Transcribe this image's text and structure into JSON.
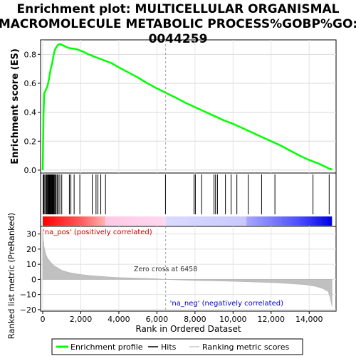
{
  "title_lines": [
    "Enrichment plot: MULTICELLULAR ORGANISMAL",
    "MACROMOLECULE METABOLIC PROCESS%GOBP%GO:",
    "0044259"
  ],
  "colors": {
    "enrichment_line": "#00ff00",
    "hits": "#000000",
    "ranking_fill": "#c0c0c0",
    "pos_band": "#ff0000",
    "neg_band": "#0000ff",
    "zero_line": "#a0a0a0"
  },
  "chart_data": [
    {
      "type": "line",
      "panel": "enrichment",
      "ylabel": "Enrichment score (ES)",
      "xlim": [
        0,
        15300
      ],
      "ylim": [
        -0.02,
        0.9
      ],
      "yticks": [
        0.0,
        0.2,
        0.4,
        0.6,
        0.8
      ],
      "yticklabels": [
        "0.0",
        "0.2",
        "0.4",
        "0.6",
        "0.8"
      ],
      "grid": true,
      "series": [
        {
          "name": "Enrichment profile",
          "x": [
            0,
            40,
            80,
            150,
            250,
            330,
            420,
            500,
            560,
            640,
            720,
            800,
            880,
            950,
            1100,
            1250,
            1400,
            1600,
            1800,
            2100,
            2400,
            2800,
            3200,
            3600,
            4000,
            4500,
            5000,
            5500,
            6000,
            6458,
            7000,
            7500,
            8000,
            8500,
            9000,
            9500,
            10000,
            10500,
            11000,
            11500,
            12000,
            12500,
            13000,
            13500,
            14000,
            14500,
            14900,
            15050,
            15200
          ],
          "y": [
            0.0,
            0.38,
            0.53,
            0.55,
            0.58,
            0.63,
            0.7,
            0.74,
            0.79,
            0.83,
            0.85,
            0.865,
            0.87,
            0.87,
            0.86,
            0.85,
            0.843,
            0.84,
            0.835,
            0.82,
            0.8,
            0.78,
            0.76,
            0.74,
            0.71,
            0.675,
            0.64,
            0.6,
            0.565,
            0.535,
            0.5,
            0.465,
            0.435,
            0.405,
            0.375,
            0.345,
            0.32,
            0.29,
            0.26,
            0.23,
            0.2,
            0.17,
            0.135,
            0.1,
            0.07,
            0.045,
            0.02,
            0.01,
            0.005
          ]
        }
      ]
    },
    {
      "type": "hits",
      "panel": "hits",
      "x": [
        20,
        60,
        110,
        170,
        210,
        250,
        280,
        310,
        340,
        370,
        400,
        430,
        460,
        490,
        520,
        550,
        580,
        610,
        650,
        700,
        760,
        820,
        900,
        1000,
        1400,
        1480,
        1650,
        1950,
        2600,
        2800,
        2900,
        3050,
        3300,
        6450,
        7950,
        8020,
        8350,
        9000,
        9080,
        9180,
        9600,
        9900,
        10200,
        10800,
        11500,
        12200,
        14200,
        15050
      ]
    },
    {
      "type": "area",
      "panel": "ranking",
      "ylabel": "Ranked list metric (PreRanked)",
      "xlabel": "Rank in Ordered Dataset",
      "xlim": [
        0,
        15300
      ],
      "ylim": [
        -21,
        35
      ],
      "yticks": [
        -20,
        -10,
        0,
        10,
        20,
        30
      ],
      "yticklabels": [
        "−20",
        "−10",
        "0",
        "10",
        "20",
        "30"
      ],
      "xticks": [
        0,
        2000,
        4000,
        6000,
        8000,
        10000,
        12000,
        14000
      ],
      "xticklabels": [
        "0",
        "2,000",
        "4,000",
        "6,000",
        "8,000",
        "10,000",
        "12,000",
        "14,000"
      ],
      "x": [
        0,
        30,
        80,
        150,
        250,
        400,
        600,
        800,
        1000,
        1300,
        1600,
        2000,
        2500,
        3000,
        3500,
        4000,
        5000,
        6000,
        6458,
        7000,
        8000,
        9000,
        10000,
        11000,
        12000,
        13000,
        13800,
        14300,
        14700,
        15000,
        15100,
        15200
      ],
      "values": [
        32,
        26,
        21,
        17,
        14,
        11.5,
        9,
        7.5,
        6,
        4.8,
        4,
        3.2,
        2.5,
        2,
        1.6,
        1.2,
        0.8,
        0.4,
        0,
        -0.3,
        -0.7,
        -1,
        -1.3,
        -1.7,
        -2.1,
        -2.8,
        -3.5,
        -4.5,
        -6,
        -8,
        -12,
        -18
      ],
      "zero_cross_label": "Zero cross at 6458",
      "pos_label": "'na_pos' (positively correlated)",
      "neg_label": "'na_neg' (negatively correlated)"
    }
  ],
  "legend": {
    "items": [
      "Enrichment profile",
      "Hits",
      "Ranking metric scores"
    ]
  }
}
